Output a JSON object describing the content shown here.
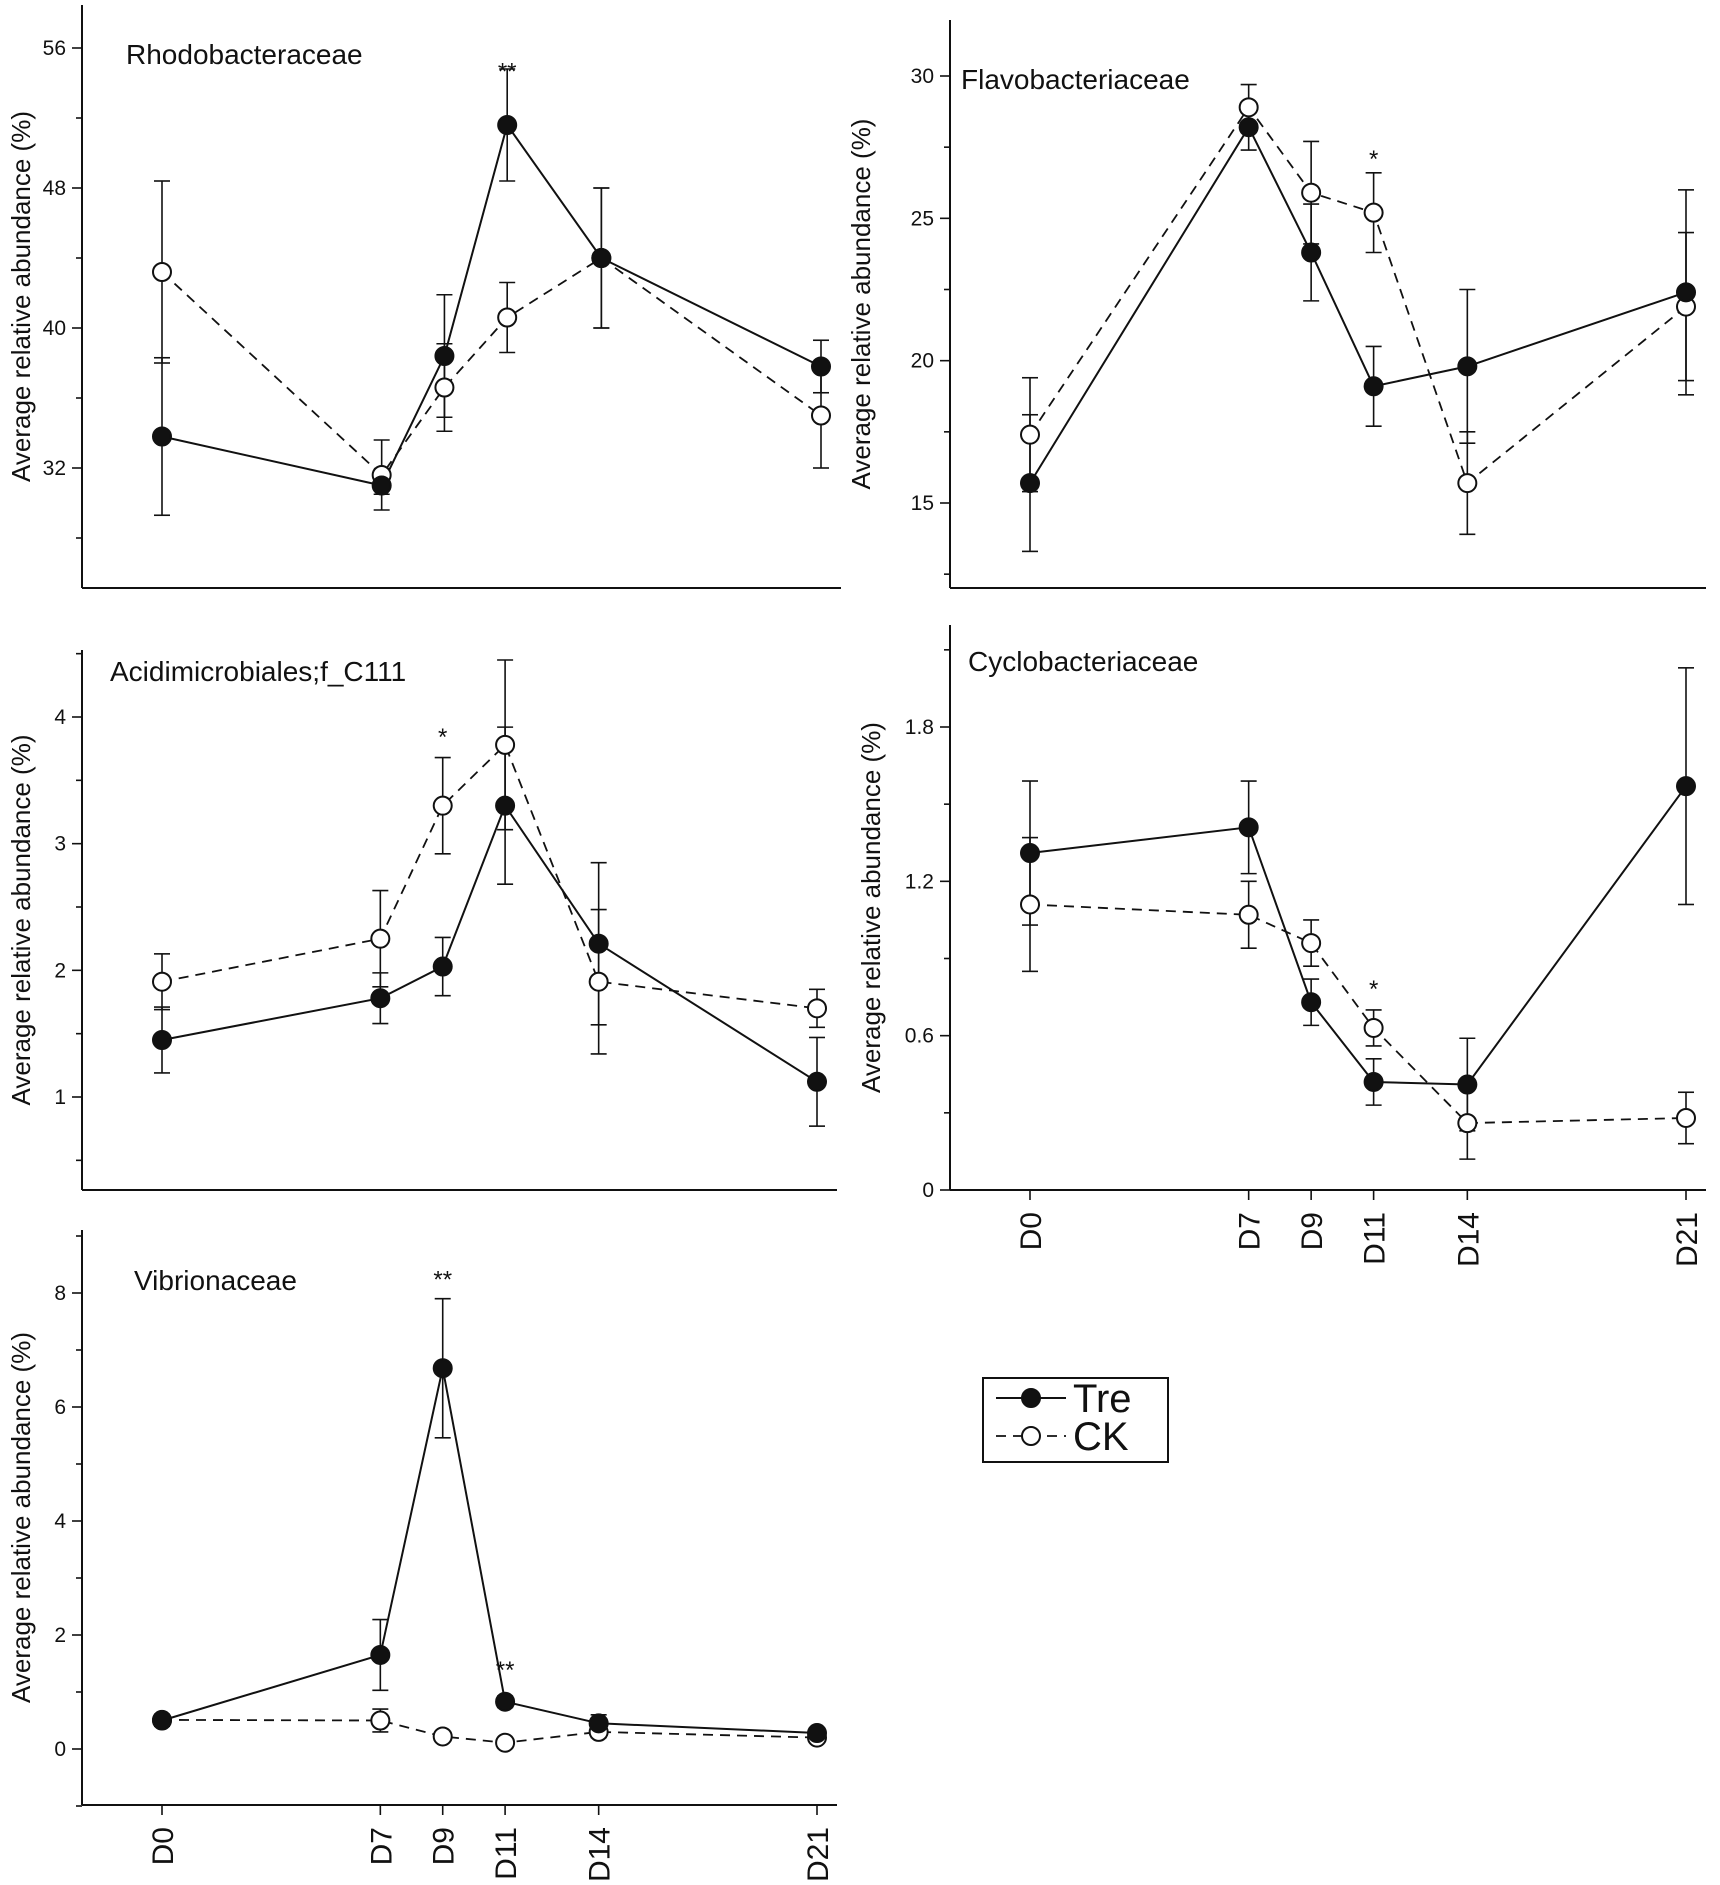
{
  "chart_data": [
    {
      "type": "line",
      "title": "Rhodobacteraceae",
      "xlabel": "",
      "ylabel": "Average relative abundance (%)",
      "x": [
        "D0",
        "D7",
        "D9",
        "D11",
        "D14",
        "D21"
      ],
      "x_days": [
        0,
        7,
        9,
        11,
        14,
        21
      ],
      "ylim": [
        24,
        57
      ],
      "yticks": [
        32,
        40,
        48,
        56
      ],
      "series": [
        {
          "name": "Tre",
          "values": [
            33.8,
            31.0,
            38.4,
            51.6,
            44.0,
            37.8
          ],
          "err": [
            4.5,
            0.5,
            3.5,
            3.2,
            4.0,
            1.5
          ]
        },
        {
          "name": "CK",
          "values": [
            43.2,
            31.6,
            36.6,
            40.6,
            44.0,
            35.0
          ],
          "err": [
            5.2,
            2.0,
            2.5,
            2.0,
            4.0,
            3.0
          ]
        }
      ],
      "annotations": [
        {
          "text": "**",
          "x": "D11",
          "y": 54.2
        }
      ]
    },
    {
      "type": "line",
      "title": "Flavobacteriaceae",
      "xlabel": "",
      "ylabel": "Average relative abundance (%)",
      "x": [
        "D0",
        "D7",
        "D9",
        "D11",
        "D14",
        "D21"
      ],
      "x_days": [
        0,
        7,
        9,
        11,
        14,
        21
      ],
      "ylim": [
        12.5,
        32
      ],
      "yticks": [
        15,
        20,
        25,
        30
      ],
      "series": [
        {
          "name": "Tre",
          "values": [
            15.7,
            28.2,
            23.8,
            19.1,
            19.8,
            22.4
          ],
          "err": [
            2.4,
            0.8,
            1.7,
            1.4,
            2.7,
            3.6
          ]
        },
        {
          "name": "CK",
          "values": [
            17.4,
            28.9,
            25.9,
            25.2,
            15.7,
            21.9
          ],
          "err": [
            2.0,
            0.8,
            1.8,
            1.4,
            1.8,
            2.6
          ]
        }
      ],
      "annotations": [
        {
          "text": "*",
          "x": "D11",
          "y": 26.8
        }
      ]
    },
    {
      "type": "line",
      "title": "Acidimicrobiales;f_C111",
      "xlabel": "",
      "ylabel": "Average relative abundance (%)",
      "x": [
        "D0",
        "D7",
        "D9",
        "D11",
        "D14",
        "D21"
      ],
      "x_days": [
        0,
        7,
        9,
        11,
        14,
        21
      ],
      "ylim": [
        0.3,
        4.5
      ],
      "yticks": [
        1,
        2,
        3,
        4
      ],
      "series": [
        {
          "name": "Tre",
          "values": [
            1.45,
            1.78,
            2.03,
            3.3,
            2.21,
            1.12
          ],
          "err": [
            0.26,
            0.2,
            0.23,
            0.62,
            0.64,
            0.35
          ]
        },
        {
          "name": "CK",
          "values": [
            1.91,
            2.25,
            3.3,
            3.78,
            1.91,
            1.7
          ],
          "err": [
            0.22,
            0.38,
            0.38,
            0.67,
            0.57,
            0.15
          ]
        }
      ],
      "annotations": [
        {
          "text": "*",
          "x": "D9",
          "y": 3.78
        }
      ]
    },
    {
      "type": "line",
      "title": "Cyclobacteriaceae",
      "xlabel": "",
      "ylabel": "Average relative abundance (%)",
      "x": [
        "D0",
        "D7",
        "D9",
        "D11",
        "D14",
        "D21"
      ],
      "x_days": [
        0,
        7,
        9,
        11,
        14,
        21
      ],
      "ylim": [
        0,
        2.2
      ],
      "yticks": [
        0,
        0.6,
        1.2,
        1.8
      ],
      "series": [
        {
          "name": "Tre",
          "values": [
            1.31,
            1.41,
            0.73,
            0.42,
            0.41,
            1.57
          ],
          "err": [
            0.28,
            0.18,
            0.09,
            0.09,
            0.18,
            0.46
          ]
        },
        {
          "name": "CK",
          "values": [
            1.11,
            1.07,
            0.96,
            0.63,
            0.26,
            0.28
          ],
          "err": [
            0.26,
            0.13,
            0.09,
            0.07,
            0.14,
            0.1
          ]
        }
      ],
      "annotations": [
        {
          "text": "*",
          "x": "D11",
          "y": 0.75
        }
      ]
    },
    {
      "type": "line",
      "title": "Vibrionaceae",
      "xlabel": "",
      "ylabel": "Average relative abundance (%)",
      "x": [
        "D0",
        "D7",
        "D9",
        "D11",
        "D14",
        "D21"
      ],
      "x_days": [
        0,
        7,
        9,
        11,
        14,
        21
      ],
      "ylim": [
        -1,
        9
      ],
      "yticks": [
        0,
        2,
        4,
        6,
        8
      ],
      "series": [
        {
          "name": "Tre",
          "values": [
            0.5,
            1.65,
            6.68,
            0.83,
            0.45,
            0.28
          ],
          "err": [
            0.1,
            0.62,
            1.22,
            0.1,
            0.15,
            0.08
          ]
        },
        {
          "name": "CK",
          "values": [
            0.51,
            0.5,
            0.22,
            0.11,
            0.3,
            0.2
          ],
          "err": [
            0.1,
            0.2,
            0.08,
            0.08,
            0.1,
            0.05
          ]
        }
      ],
      "annotations": [
        {
          "text": "**",
          "x": "D9",
          "y": 8.1
        },
        {
          "text": "**",
          "x": "D11",
          "y": 1.25
        }
      ]
    }
  ],
  "legend": {
    "entries": [
      "Tre",
      "CK"
    ]
  }
}
